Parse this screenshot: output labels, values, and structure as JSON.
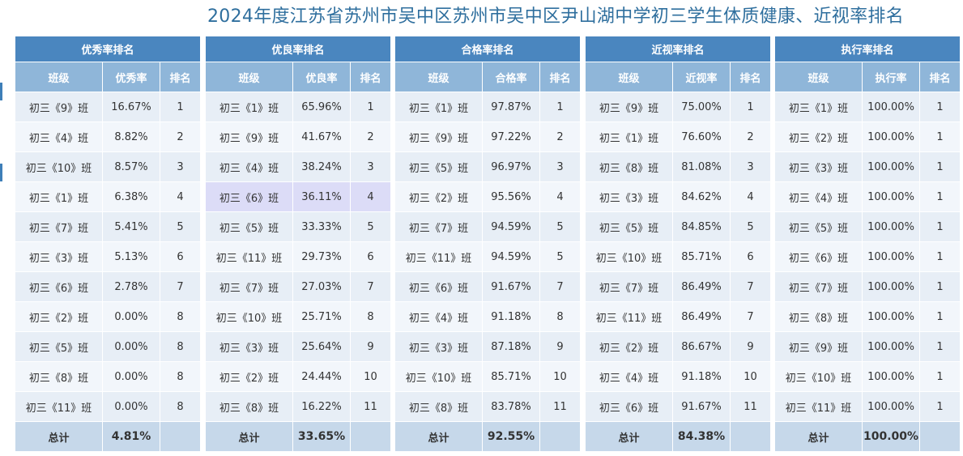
{
  "title": "2024年度江苏省苏州市吴中区苏州市吴中区尹山湖中学初三学生体质健康、近视率排名",
  "colors": {
    "header": "#4a86bf",
    "subheader": "#8fb6d9",
    "total": "#c6d8ea",
    "highlight": "#dcdcf7",
    "title": "#2f6f9e"
  },
  "panels": [
    {
      "title": "优秀率排名",
      "columns": [
        "班级",
        "优秀率",
        "排名"
      ],
      "rows": [
        [
          "初三《9》班",
          "16.67%",
          "1"
        ],
        [
          "初三《4》班",
          "8.82%",
          "2"
        ],
        [
          "初三《10》班",
          "8.57%",
          "3"
        ],
        [
          "初三《1》班",
          "6.38%",
          "4"
        ],
        [
          "初三《7》班",
          "5.41%",
          "5"
        ],
        [
          "初三《3》班",
          "5.13%",
          "6"
        ],
        [
          "初三《6》班",
          "2.78%",
          "7"
        ],
        [
          "初三《2》班",
          "0.00%",
          "8"
        ],
        [
          "初三《5》班",
          "0.00%",
          "8"
        ],
        [
          "初三《8》班",
          "0.00%",
          "8"
        ],
        [
          "初三《11》班",
          "0.00%",
          "8"
        ]
      ],
      "total_label": "总计",
      "total_value": "4.81%"
    },
    {
      "title": "优良率排名",
      "columns": [
        "班级",
        "优良率",
        "排名"
      ],
      "rows": [
        [
          "初三《1》班",
          "65.96%",
          "1"
        ],
        [
          "初三《9》班",
          "41.67%",
          "2"
        ],
        [
          "初三《4》班",
          "38.24%",
          "3"
        ],
        [
          "初三《6》班",
          "36.11%",
          "4"
        ],
        [
          "初三《5》班",
          "33.33%",
          "5"
        ],
        [
          "初三《11》班",
          "29.73%",
          "6"
        ],
        [
          "初三《7》班",
          "27.03%",
          "7"
        ],
        [
          "初三《10》班",
          "25.71%",
          "8"
        ],
        [
          "初三《3》班",
          "25.64%",
          "9"
        ],
        [
          "初三《2》班",
          "24.44%",
          "10"
        ],
        [
          "初三《8》班",
          "16.22%",
          "11"
        ]
      ],
      "highlight_row": 3,
      "total_label": "总计",
      "total_value": "33.65%"
    },
    {
      "title": "合格率排名",
      "columns": [
        "班级",
        "合格率",
        "排名"
      ],
      "rows": [
        [
          "初三《1》班",
          "97.87%",
          "1"
        ],
        [
          "初三《9》班",
          "97.22%",
          "2"
        ],
        [
          "初三《5》班",
          "96.97%",
          "3"
        ],
        [
          "初三《2》班",
          "95.56%",
          "4"
        ],
        [
          "初三《7》班",
          "94.59%",
          "5"
        ],
        [
          "初三《11》班",
          "94.59%",
          "5"
        ],
        [
          "初三《6》班",
          "91.67%",
          "7"
        ],
        [
          "初三《4》班",
          "91.18%",
          "8"
        ],
        [
          "初三《3》班",
          "87.18%",
          "9"
        ],
        [
          "初三《10》班",
          "85.71%",
          "10"
        ],
        [
          "初三《8》班",
          "83.78%",
          "11"
        ]
      ],
      "total_label": "总计",
      "total_value": "92.55%"
    },
    {
      "title": "近视率排名",
      "columns": [
        "班级",
        "近视率",
        "排名"
      ],
      "rows": [
        [
          "初三《9》班",
          "75.00%",
          "1"
        ],
        [
          "初三《1》班",
          "76.60%",
          "2"
        ],
        [
          "初三《8》班",
          "81.08%",
          "3"
        ],
        [
          "初三《3》班",
          "84.62%",
          "4"
        ],
        [
          "初三《5》班",
          "84.85%",
          "5"
        ],
        [
          "初三《10》班",
          "85.71%",
          "6"
        ],
        [
          "初三《7》班",
          "86.49%",
          "7"
        ],
        [
          "初三《11》班",
          "86.49%",
          "7"
        ],
        [
          "初三《2》班",
          "86.67%",
          "9"
        ],
        [
          "初三《4》班",
          "91.18%",
          "10"
        ],
        [
          "初三《6》班",
          "91.67%",
          "11"
        ]
      ],
      "total_label": "总计",
      "total_value": "84.38%"
    },
    {
      "title": "执行率排名",
      "columns": [
        "班级",
        "执行率",
        "排名"
      ],
      "rows": [
        [
          "初三《1》班",
          "100.00%",
          "1"
        ],
        [
          "初三《2》班",
          "100.00%",
          "1"
        ],
        [
          "初三《3》班",
          "100.00%",
          "1"
        ],
        [
          "初三《4》班",
          "100.00%",
          "1"
        ],
        [
          "初三《5》班",
          "100.00%",
          "1"
        ],
        [
          "初三《6》班",
          "100.00%",
          "1"
        ],
        [
          "初三《7》班",
          "100.00%",
          "1"
        ],
        [
          "初三《8》班",
          "100.00%",
          "1"
        ],
        [
          "初三《9》班",
          "100.00%",
          "1"
        ],
        [
          "初三《10》班",
          "100.00%",
          "1"
        ],
        [
          "初三《11》班",
          "100.00%",
          "1"
        ]
      ],
      "total_label": "总计",
      "total_value": "100.00%"
    }
  ]
}
